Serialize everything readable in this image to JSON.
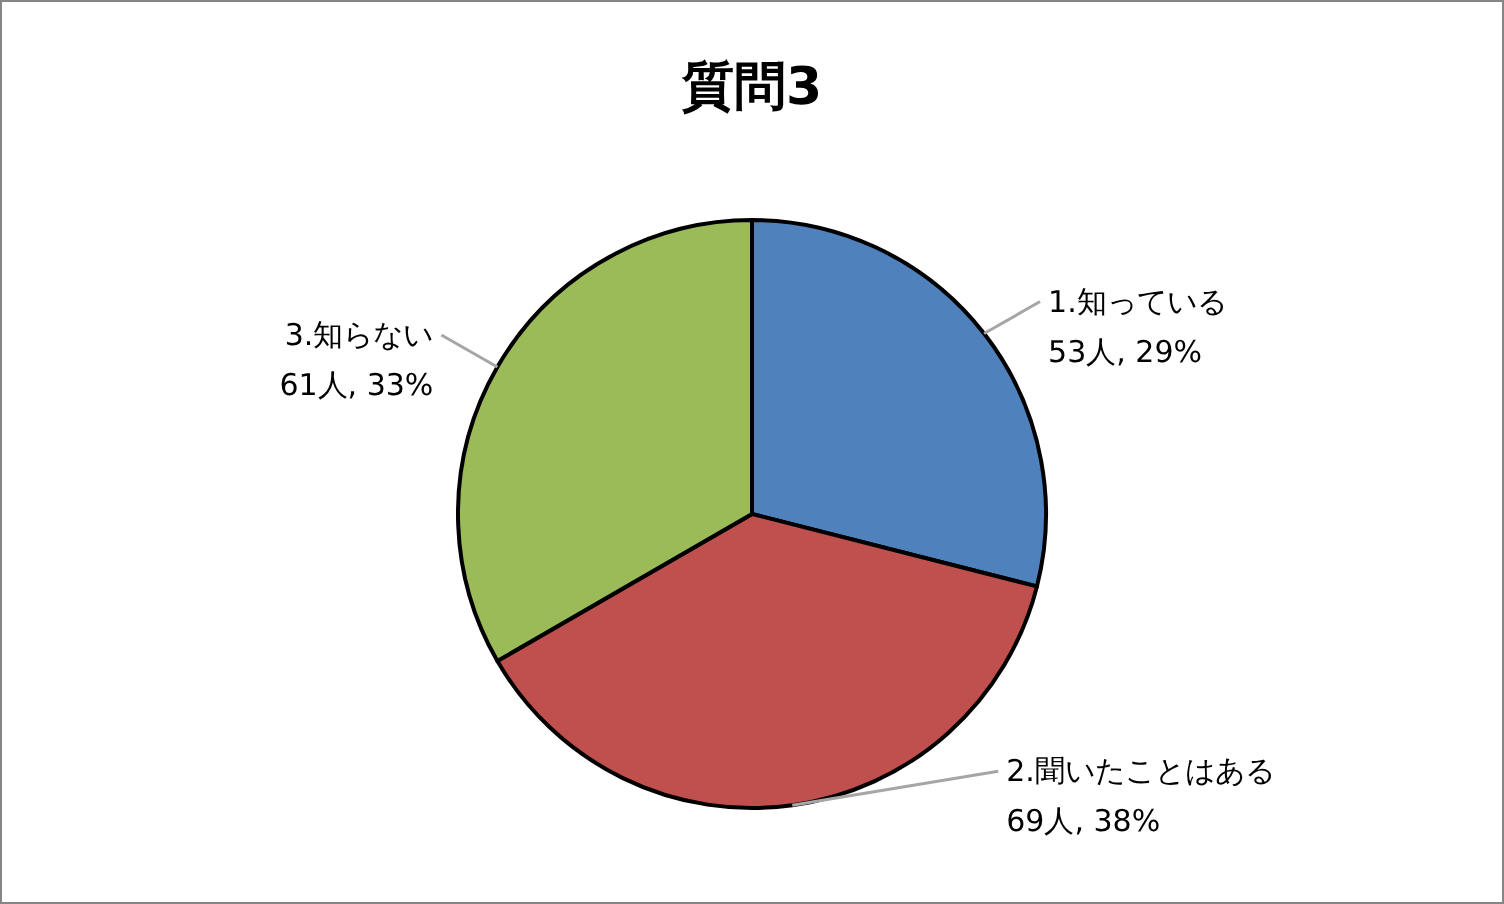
{
  "chart_data": {
    "type": "pie",
    "title": "質問3",
    "categories": [
      "1.知っている",
      "2.聞いたことはある",
      "3.知らない"
    ],
    "values": [
      53,
      69,
      61
    ],
    "colors": [
      "#4f81bd",
      "#c0504d",
      "#9bbb59"
    ],
    "value_labels": [
      "53人, 29%",
      "69人, 38%",
      "61人, 33%"
    ],
    "legend": false
  }
}
